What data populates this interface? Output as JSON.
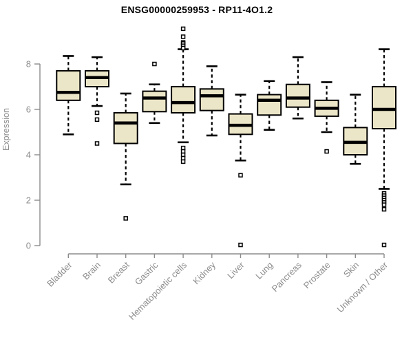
{
  "chart_data": {
    "type": "boxplot",
    "title": "ENSG00000259953 - RP11-4O1.2",
    "ylabel": "Expression",
    "xlabel": "",
    "yticks": [
      0,
      2,
      4,
      6,
      8
    ],
    "ylim": [
      0,
      9.8
    ],
    "grid": "off",
    "legend": "none",
    "categories": [
      "Bladder",
      "Brain",
      "Breast",
      "Gastric",
      "Hematopoietic cells",
      "Kidney",
      "Liver",
      "Lung",
      "Pancreas",
      "Prostate",
      "Skin",
      "Unknown / Other"
    ],
    "boxes": [
      {
        "category": "Bladder",
        "whisker_low": 4.9,
        "q1": 6.4,
        "median": 6.75,
        "q3": 7.7,
        "whisker_high": 8.35,
        "outliers": []
      },
      {
        "category": "Brain",
        "whisker_low": 6.15,
        "q1": 7.0,
        "median": 7.4,
        "q3": 7.7,
        "whisker_high": 8.3,
        "outliers": [
          5.85,
          5.55,
          4.5
        ]
      },
      {
        "category": "Breast",
        "whisker_low": 2.7,
        "q1": 4.5,
        "median": 5.4,
        "q3": 5.85,
        "whisker_high": 6.7,
        "outliers": [
          1.2
        ]
      },
      {
        "category": "Gastric",
        "whisker_low": 5.4,
        "q1": 5.9,
        "median": 6.5,
        "q3": 6.8,
        "whisker_high": 7.1,
        "outliers": [
          8.0
        ]
      },
      {
        "category": "Hematopoietic cells",
        "whisker_low": 4.55,
        "q1": 5.85,
        "median": 6.3,
        "q3": 7.0,
        "whisker_high": 8.65,
        "outliers": [
          9.55,
          9.2,
          8.95,
          8.9,
          8.8,
          8.7,
          4.3,
          4.15,
          4.0,
          3.85,
          3.7
        ]
      },
      {
        "category": "Kidney",
        "whisker_low": 4.85,
        "q1": 5.95,
        "median": 6.6,
        "q3": 6.9,
        "whisker_high": 7.9,
        "outliers": []
      },
      {
        "category": "Liver",
        "whisker_low": 3.75,
        "q1": 4.9,
        "median": 5.3,
        "q3": 5.8,
        "whisker_high": 6.65,
        "outliers": [
          3.1,
          0.03
        ]
      },
      {
        "category": "Lung",
        "whisker_low": 5.1,
        "q1": 5.75,
        "median": 6.4,
        "q3": 6.65,
        "whisker_high": 7.25,
        "outliers": []
      },
      {
        "category": "Pancreas",
        "whisker_low": 5.6,
        "q1": 6.1,
        "median": 6.5,
        "q3": 7.1,
        "whisker_high": 8.3,
        "outliers": []
      },
      {
        "category": "Prostate",
        "whisker_low": 5.0,
        "q1": 5.7,
        "median": 6.05,
        "q3": 6.4,
        "whisker_high": 7.2,
        "outliers": [
          4.15
        ]
      },
      {
        "category": "Skin",
        "whisker_low": 3.6,
        "q1": 4.0,
        "median": 4.55,
        "q3": 5.2,
        "whisker_high": 6.65,
        "outliers": []
      },
      {
        "category": "Unknown / Other",
        "whisker_low": 2.5,
        "q1": 5.15,
        "median": 6.0,
        "q3": 7.0,
        "whisker_high": 8.65,
        "outliers": [
          2.3,
          2.2,
          2.1,
          2.0,
          1.9,
          1.8,
          1.6,
          0.03
        ]
      }
    ],
    "style": {
      "box_fill": "#ECE6C8",
      "box_stroke": "#000000",
      "median_color": "#000000",
      "whisker_color": "#000000",
      "outlier_fill": "#FFFFFF",
      "outlier_stroke": "#000000",
      "axis_color": "#8C8C8C",
      "label_color": "#8C8C8C",
      "title_color": "#000000",
      "background": "#FFFFFF"
    }
  }
}
